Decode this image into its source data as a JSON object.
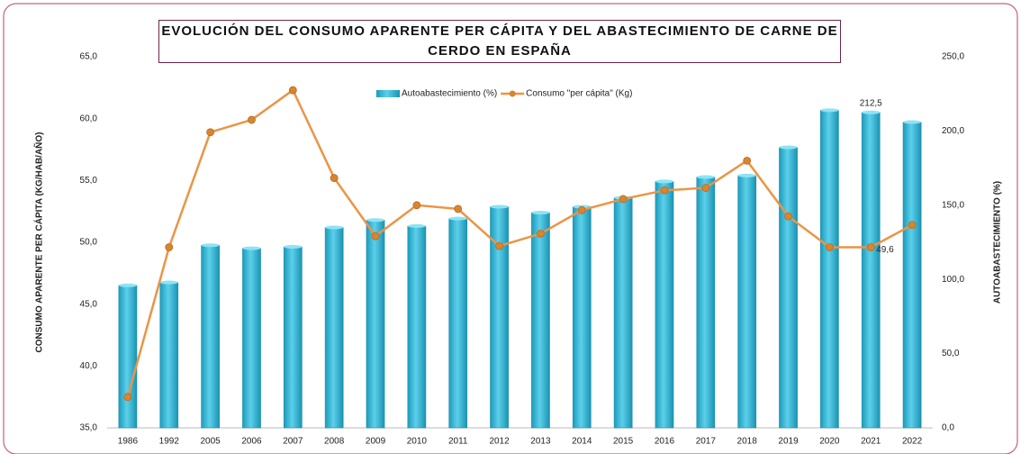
{
  "chart_data": {
    "type": "bar-line",
    "title": "EVOLUCIÓN DEL CONSUMO APARENTE PER CÁPITA Y DEL ABASTECIMIENTO DE CARNE DE CERDO EN ESPAÑA",
    "y_label": "CONSUMO APARENTE PER CÁPITA (KG/HAB/AÑO)",
    "y2_label": "AUTOABASTECIMIENTO (%)",
    "categories": [
      "1986",
      "1992",
      "2005",
      "2006",
      "2007",
      "2008",
      "2009",
      "2010",
      "2011",
      "2012",
      "2013",
      "2014",
      "2015",
      "2016",
      "2017",
      "2018",
      "2019",
      "2020",
      "2021",
      "2022"
    ],
    "series": [
      {
        "name": "Autoabastecimiento (%)",
        "type": "bar",
        "axis": "y2",
        "color": "#2fb3d1",
        "values": [
          96,
          98,
          123,
          121,
          122,
          135,
          140,
          136,
          141,
          149,
          145,
          149,
          155,
          166,
          169,
          170,
          189,
          214,
          212.5,
          206
        ],
        "value_labels": [
          null,
          null,
          null,
          null,
          null,
          null,
          null,
          null,
          null,
          null,
          null,
          null,
          null,
          null,
          null,
          null,
          null,
          null,
          "212,5",
          null
        ]
      },
      {
        "name": "Consumo \"per cápita\" (Kg)",
        "type": "line",
        "axis": "y",
        "color": "#ec9445",
        "values": [
          37.5,
          49.6,
          58.9,
          59.9,
          62.3,
          55.2,
          50.5,
          53.0,
          52.7,
          49.7,
          50.7,
          52.6,
          53.5,
          54.2,
          54.4,
          56.6,
          52.1,
          49.6,
          49.6,
          51.4
        ],
        "value_labels": [
          null,
          null,
          null,
          null,
          null,
          null,
          null,
          null,
          null,
          null,
          null,
          null,
          null,
          null,
          null,
          null,
          null,
          null,
          "49,6",
          null
        ]
      }
    ],
    "ylim": [
      35,
      65
    ],
    "yticks": [
      {
        "value": 35,
        "label": "35,0"
      },
      {
        "value": 40,
        "label": "40,0"
      },
      {
        "value": 45,
        "label": "45,0"
      },
      {
        "value": 50,
        "label": "50,0"
      },
      {
        "value": 55,
        "label": "55,0"
      },
      {
        "value": 60,
        "label": "60,0"
      },
      {
        "value": 65,
        "label": "65,0"
      }
    ],
    "y2lim": [
      0,
      250
    ],
    "y2ticks": [
      {
        "value": 0,
        "label": "0,0"
      },
      {
        "value": 50,
        "label": "50,0"
      },
      {
        "value": 100,
        "label": "100,0"
      },
      {
        "value": 150,
        "label": "150,0"
      },
      {
        "value": 200,
        "label": "200,0"
      },
      {
        "value": 250,
        "label": "250,0"
      }
    ],
    "legend": "top"
  }
}
